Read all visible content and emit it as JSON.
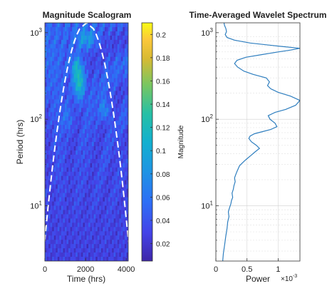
{
  "chart_data": [
    {
      "type": "heatmap",
      "title": "Magnitude Scalogram",
      "xlabel": "Time (hrs)",
      "ylabel": "Period (hrs)",
      "xlim": [
        0,
        4100
      ],
      "x_ticks": [
        0,
        2000,
        4000
      ],
      "x_tick_labels": [
        "0",
        "2000",
        "4000"
      ],
      "y_scale": "log",
      "ylim": [
        2.3,
        1300
      ],
      "y_ticks": [
        10,
        100,
        1000
      ],
      "y_tick_bases": [
        "10",
        "10",
        "10"
      ],
      "y_tick_exponents": [
        "1",
        "2",
        "3"
      ],
      "colorbar": {
        "label": "Magnitude",
        "range": [
          0.005,
          0.21
        ],
        "ticks": [
          0.02,
          0.04,
          0.06,
          0.08,
          0.1,
          0.12,
          0.14,
          0.16,
          0.18,
          0.2
        ],
        "tick_labels": [
          "0.02",
          "0.04",
          "0.06",
          "0.08",
          "0.1",
          "0.12",
          "0.14",
          "0.16",
          "0.18",
          "0.2"
        ]
      },
      "cone_of_influence": "dashed white",
      "colors": {
        "low": "#3e26a8",
        "mid": "#1fbfaa",
        "high": "#f9fb15",
        "coi": "#ffffff"
      }
    },
    {
      "type": "line",
      "title": "Time-Averaged Wavelet Spectrum",
      "xlabel": "Power",
      "x_exponent_base": "×10",
      "x_exponent": "-3",
      "xlim": [
        0,
        1.35
      ],
      "x_ticks": [
        0,
        0.5,
        1
      ],
      "x_tick_labels": [
        "0",
        "0.5",
        "1"
      ],
      "y_scale": "log",
      "ylim": [
        2.3,
        1300
      ],
      "y_ticks": [
        10,
        100,
        1000
      ],
      "y_tick_bases": [
        "10",
        "10",
        "10"
      ],
      "y_tick_exponents": [
        "1",
        "2",
        "3"
      ],
      "grid": true,
      "line_color": "#2e7ebf",
      "series": [
        {
          "x": [
            0.11,
            0.12,
            0.14,
            0.16,
            0.18,
            0.19,
            0.21,
            0.2,
            0.22,
            0.24,
            0.25,
            0.27,
            0.26,
            0.28,
            0.29,
            0.31,
            0.3,
            0.32,
            0.34,
            0.36,
            0.38,
            0.42,
            0.46,
            0.5,
            0.56,
            0.63,
            0.7,
            0.65,
            0.57,
            0.53,
            0.55,
            0.62,
            0.75,
            0.88,
            0.98,
            0.95,
            0.87,
            0.84,
            0.95,
            1.12,
            1.28,
            1.35,
            1.2,
            1.0,
            0.88,
            0.83,
            0.86,
            0.81,
            0.6,
            0.45,
            0.35,
            0.3,
            0.34,
            0.48,
            0.75,
            1.0,
            1.2,
            1.35,
            1.0,
            0.55,
            0.3,
            0.18,
            0.15,
            0.17,
            0.16,
            0.14,
            0.13
          ],
          "y": [
            2.3,
            2.8,
            3.5,
            4.5,
            5.5,
            6.5,
            7.5,
            8.5,
            9.5,
            10.5,
            11.5,
            12.5,
            14,
            15.5,
            17,
            19,
            21,
            23,
            25,
            27,
            29,
            31,
            33,
            35,
            38,
            42,
            46,
            50,
            55,
            60,
            64,
            68,
            72,
            76,
            82,
            90,
            100,
            110,
            120,
            130,
            145,
            165,
            185,
            205,
            225,
            245,
            270,
            300,
            330,
            360,
            400,
            440,
            480,
            520,
            560,
            600,
            630,
            660,
            700,
            760,
            820,
            880,
            950,
            1030,
            1120,
            1210,
            1300
          ]
        }
      ]
    }
  ]
}
